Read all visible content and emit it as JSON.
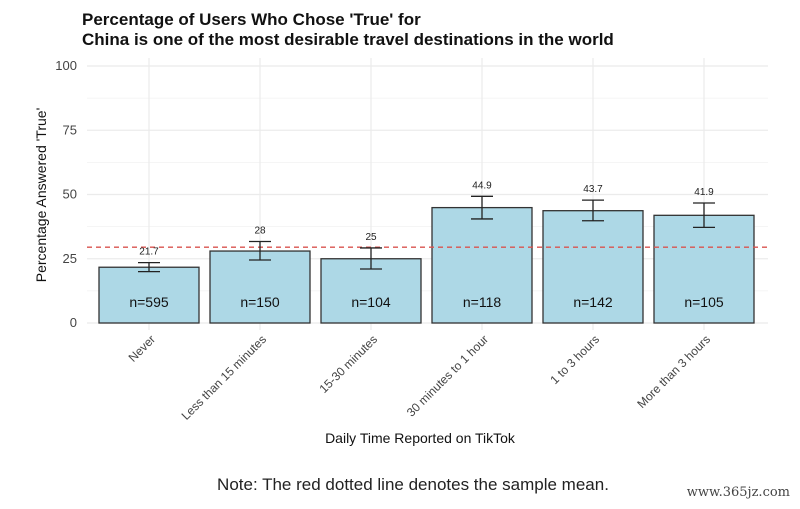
{
  "chart_data": {
    "type": "bar",
    "title": "Percentage of Users Who Chose 'True' for",
    "subtitle": "China is one of the most desirable travel destinations in the world",
    "xlabel": "Daily Time Reported on TikTok",
    "ylabel": "Percentage Answered 'True'",
    "ylim": [
      0,
      100
    ],
    "yticks": [
      0,
      25,
      50,
      75,
      100
    ],
    "categories": [
      "Never",
      "Less than 15 minutes",
      "15-30 minutes",
      "30 minutes to 1 hour",
      "1 to 3 hours",
      "More than 3 hours"
    ],
    "values": [
      21.7,
      28,
      25,
      44.9,
      43.7,
      41.9
    ],
    "value_labels": [
      "21.7",
      "28",
      "25",
      "44.9",
      "43.7",
      "41.9"
    ],
    "error_low": [
      20.0,
      24.5,
      21.0,
      40.5,
      39.8,
      37.2
    ],
    "error_high": [
      23.5,
      31.7,
      29.2,
      49.3,
      47.8,
      46.7
    ],
    "n_labels": [
      "n=595",
      "n=150",
      "n=104",
      "n=118",
      "n=142",
      "n=105"
    ],
    "mean_line": 29.5,
    "grid": true,
    "colors": {
      "bar_fill": "#add8e6",
      "bar_stroke": "#333333",
      "mean_line": "#d9534f",
      "grid": "#ebebeb"
    }
  },
  "note": "Note: The red dotted line denotes the sample mean.",
  "watermark": "www.365jz.com"
}
